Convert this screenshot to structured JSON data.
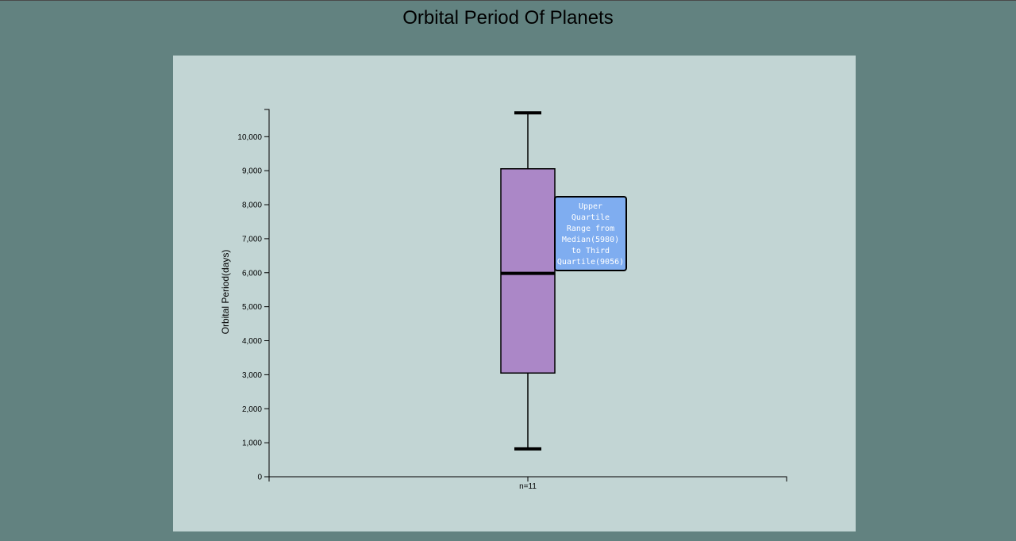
{
  "chart_data": {
    "type": "box",
    "title": "Orbital Period Of Planets",
    "ylabel": "Orbital Period(days)",
    "xlabel": "",
    "ylim": [
      0,
      10800
    ],
    "yticks": [
      0,
      1000,
      2000,
      3000,
      4000,
      5000,
      6000,
      7000,
      8000,
      9000,
      10000
    ],
    "ytick_labels": [
      "0",
      "1,000",
      "2,000",
      "3,000",
      "4,000",
      "5,000",
      "6,000",
      "7,000",
      "8,000",
      "9,000",
      "10,000"
    ],
    "categories": [
      "n=11"
    ],
    "boxes": [
      {
        "label": "n=11",
        "min": 820,
        "q1": 3050,
        "median": 5980,
        "q3": 9056,
        "max": 10700
      }
    ],
    "tooltip": "Upper\nQuartile\nRange from\nMedian(5980)\nto Third\nQuartile(9056)",
    "colors": {
      "background": "#628280",
      "panel": "#c2d5d4",
      "box_fill": "#ab87c7",
      "tooltip_fill": "#7fadf0"
    }
  }
}
